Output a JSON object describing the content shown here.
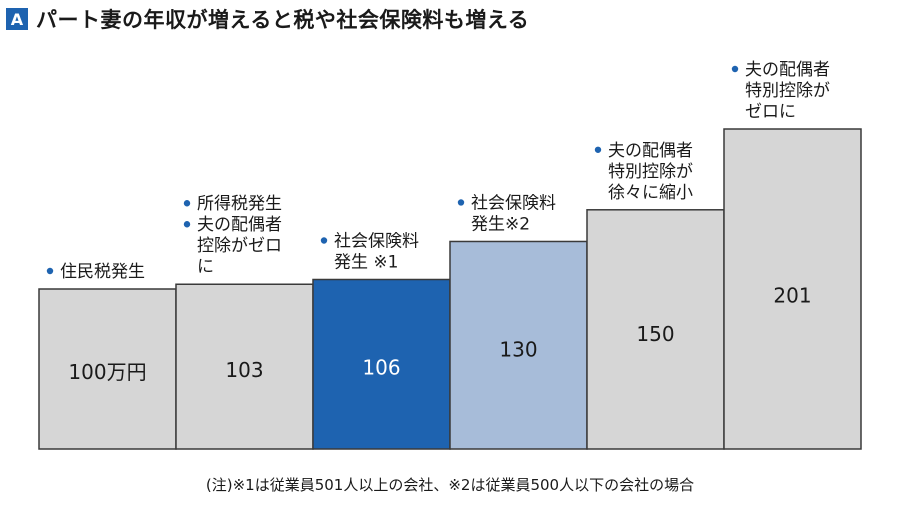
{
  "header": {
    "badge": "A",
    "title": "パート妻の年収が増えると税や社会保険料も増える"
  },
  "chart_data": {
    "type": "bar",
    "title": "パート妻の年収が増えると税や社会保険料も増える",
    "xlabel": "",
    "ylabel": "",
    "unit": "万円",
    "categories": [
      "100万円",
      "103",
      "106",
      "130",
      "150",
      "201"
    ],
    "values": [
      100,
      103,
      106,
      130,
      150,
      201
    ],
    "value_labels": [
      "100万円",
      "103",
      "106",
      "130",
      "150",
      "201"
    ],
    "bar_colors": [
      "#d6d6d6",
      "#d6d6d6",
      "#1e63b0",
      "#a7bcd9",
      "#d6d6d6",
      "#d6d6d6"
    ],
    "label_colors": [
      "#1a1a1a",
      "#1a1a1a",
      "#ffffff",
      "#1a1a1a",
      "#1a1a1a",
      "#1a1a1a"
    ],
    "annotations": [
      [
        [
          "住民税発生"
        ]
      ],
      [
        [
          "所得税発生"
        ],
        [
          "夫の配偶者",
          "控除がゼロ",
          "に"
        ]
      ],
      [
        [
          "社会保険料",
          "発生 ※1"
        ]
      ],
      [
        [
          "社会保険料",
          "発生※2"
        ]
      ],
      [
        [
          "夫の配偶者",
          "特別控除が",
          "徐々に縮小"
        ]
      ],
      [
        [
          "夫の配偶者",
          "特別控除が",
          "ゼロに"
        ]
      ]
    ],
    "grid": false,
    "legend": "none"
  },
  "note": "(注)※1は従業員501人以上の会社、※2は従業員500人以下の会社の場合",
  "colors": {
    "accent": "#1e63b0",
    "highlight_bar": "#1e63b0",
    "light_blue_bar": "#a7bcd9",
    "gray_bar": "#d6d6d6",
    "bar_border": "#3a3a3a"
  }
}
